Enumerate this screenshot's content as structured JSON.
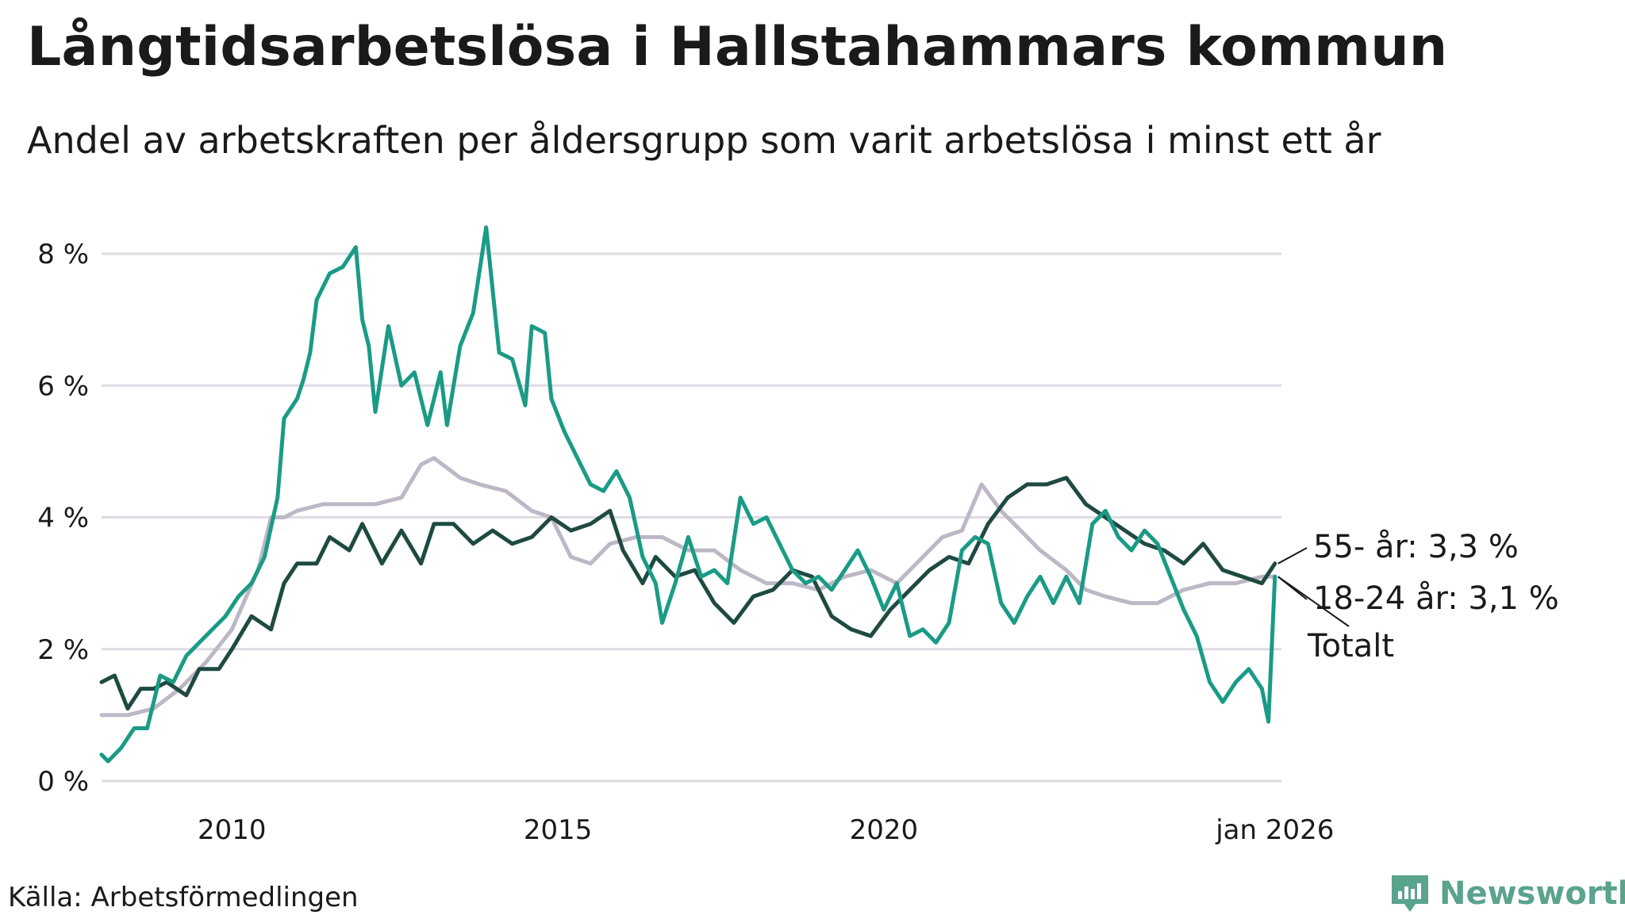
{
  "title": "Långtidsarbetslösa i Hallstahammars kommun",
  "subtitle": "Andel av arbetskraften per åldersgrupp som varit arbetslösa i minst ett år",
  "source": "Källa: Arbetsförmedlingen",
  "brand": {
    "name": "Newsworthy",
    "color": "#5aa38d"
  },
  "chart_data": {
    "type": "line",
    "xlim": [
      2008.0,
      2026.1
    ],
    "ylim": [
      0,
      8.4
    ],
    "yticks": [
      {
        "value": 0,
        "label": "0 %"
      },
      {
        "value": 2,
        "label": "2 %"
      },
      {
        "value": 4,
        "label": "4 %"
      },
      {
        "value": 6,
        "label": "6 %"
      },
      {
        "value": 8,
        "label": "8 %"
      }
    ],
    "xticks": [
      {
        "value": 2010,
        "label": "2010"
      },
      {
        "value": 2015,
        "label": "2015"
      },
      {
        "value": 2020,
        "label": "2020"
      },
      {
        "value": 2026,
        "label": "jan 2026"
      }
    ],
    "grid": true,
    "series": [
      {
        "name": "Totalt",
        "label": "Totalt",
        "color": "#bdb7c6",
        "points": [
          [
            2008.0,
            1.0
          ],
          [
            2008.4,
            1.0
          ],
          [
            2008.8,
            1.1
          ],
          [
            2009.2,
            1.4
          ],
          [
            2009.6,
            1.8
          ],
          [
            2010.0,
            2.3
          ],
          [
            2010.4,
            3.2
          ],
          [
            2010.6,
            4.0
          ],
          [
            2010.8,
            4.0
          ],
          [
            2011.0,
            4.1
          ],
          [
            2011.4,
            4.2
          ],
          [
            2011.8,
            4.2
          ],
          [
            2012.2,
            4.2
          ],
          [
            2012.6,
            4.3
          ],
          [
            2012.9,
            4.8
          ],
          [
            2013.1,
            4.9
          ],
          [
            2013.5,
            4.6
          ],
          [
            2013.8,
            4.5
          ],
          [
            2014.2,
            4.4
          ],
          [
            2014.6,
            4.1
          ],
          [
            2014.9,
            4.0
          ],
          [
            2015.2,
            3.4
          ],
          [
            2015.5,
            3.3
          ],
          [
            2015.8,
            3.6
          ],
          [
            2016.2,
            3.7
          ],
          [
            2016.6,
            3.7
          ],
          [
            2017.0,
            3.5
          ],
          [
            2017.4,
            3.5
          ],
          [
            2017.8,
            3.2
          ],
          [
            2018.2,
            3.0
          ],
          [
            2018.6,
            3.0
          ],
          [
            2019.0,
            2.9
          ],
          [
            2019.4,
            3.1
          ],
          [
            2019.8,
            3.2
          ],
          [
            2020.2,
            3.0
          ],
          [
            2020.6,
            3.4
          ],
          [
            2020.9,
            3.7
          ],
          [
            2021.2,
            3.8
          ],
          [
            2021.5,
            4.5
          ],
          [
            2021.8,
            4.1
          ],
          [
            2022.1,
            3.8
          ],
          [
            2022.4,
            3.5
          ],
          [
            2022.8,
            3.2
          ],
          [
            2023.1,
            2.9
          ],
          [
            2023.4,
            2.8
          ],
          [
            2023.8,
            2.7
          ],
          [
            2024.2,
            2.7
          ],
          [
            2024.6,
            2.9
          ],
          [
            2025.0,
            3.0
          ],
          [
            2025.4,
            3.0
          ],
          [
            2025.8,
            3.1
          ],
          [
            2026.0,
            3.1
          ]
        ]
      },
      {
        "name": "55- år",
        "label": "55- år: 3,3 %",
        "color": "#1f4a42",
        "points": [
          [
            2008.0,
            1.5
          ],
          [
            2008.2,
            1.6
          ],
          [
            2008.4,
            1.1
          ],
          [
            2008.6,
            1.4
          ],
          [
            2008.8,
            1.4
          ],
          [
            2009.0,
            1.5
          ],
          [
            2009.3,
            1.3
          ],
          [
            2009.5,
            1.7
          ],
          [
            2009.8,
            1.7
          ],
          [
            2010.0,
            2.0
          ],
          [
            2010.3,
            2.5
          ],
          [
            2010.6,
            2.3
          ],
          [
            2010.8,
            3.0
          ],
          [
            2011.0,
            3.3
          ],
          [
            2011.3,
            3.3
          ],
          [
            2011.5,
            3.7
          ],
          [
            2011.8,
            3.5
          ],
          [
            2012.0,
            3.9
          ],
          [
            2012.3,
            3.3
          ],
          [
            2012.6,
            3.8
          ],
          [
            2012.9,
            3.3
          ],
          [
            2013.1,
            3.9
          ],
          [
            2013.4,
            3.9
          ],
          [
            2013.7,
            3.6
          ],
          [
            2014.0,
            3.8
          ],
          [
            2014.3,
            3.6
          ],
          [
            2014.6,
            3.7
          ],
          [
            2014.9,
            4.0
          ],
          [
            2015.2,
            3.8
          ],
          [
            2015.5,
            3.9
          ],
          [
            2015.8,
            4.1
          ],
          [
            2016.0,
            3.5
          ],
          [
            2016.3,
            3.0
          ],
          [
            2016.5,
            3.4
          ],
          [
            2016.8,
            3.1
          ],
          [
            2017.1,
            3.2
          ],
          [
            2017.4,
            2.7
          ],
          [
            2017.7,
            2.4
          ],
          [
            2018.0,
            2.8
          ],
          [
            2018.3,
            2.9
          ],
          [
            2018.6,
            3.2
          ],
          [
            2018.9,
            3.1
          ],
          [
            2019.2,
            2.5
          ],
          [
            2019.5,
            2.3
          ],
          [
            2019.8,
            2.2
          ],
          [
            2020.1,
            2.6
          ],
          [
            2020.4,
            2.9
          ],
          [
            2020.7,
            3.2
          ],
          [
            2021.0,
            3.4
          ],
          [
            2021.3,
            3.3
          ],
          [
            2021.6,
            3.9
          ],
          [
            2021.9,
            4.3
          ],
          [
            2022.2,
            4.5
          ],
          [
            2022.5,
            4.5
          ],
          [
            2022.8,
            4.6
          ],
          [
            2023.1,
            4.2
          ],
          [
            2023.4,
            4.0
          ],
          [
            2023.7,
            3.8
          ],
          [
            2024.0,
            3.6
          ],
          [
            2024.3,
            3.5
          ],
          [
            2024.6,
            3.3
          ],
          [
            2024.9,
            3.6
          ],
          [
            2025.2,
            3.2
          ],
          [
            2025.5,
            3.1
          ],
          [
            2025.8,
            3.0
          ],
          [
            2026.0,
            3.3
          ]
        ]
      },
      {
        "name": "18-24 år",
        "label": "18-24 år: 3,1 %",
        "color": "#1a9b86",
        "points": [
          [
            2008.0,
            0.4
          ],
          [
            2008.1,
            0.3
          ],
          [
            2008.3,
            0.5
          ],
          [
            2008.5,
            0.8
          ],
          [
            2008.7,
            0.8
          ],
          [
            2008.9,
            1.6
          ],
          [
            2009.1,
            1.5
          ],
          [
            2009.3,
            1.9
          ],
          [
            2009.5,
            2.1
          ],
          [
            2009.7,
            2.3
          ],
          [
            2009.9,
            2.5
          ],
          [
            2010.1,
            2.8
          ],
          [
            2010.3,
            3.0
          ],
          [
            2010.5,
            3.4
          ],
          [
            2010.7,
            4.3
          ],
          [
            2010.8,
            5.5
          ],
          [
            2011.0,
            5.8
          ],
          [
            2011.1,
            6.1
          ],
          [
            2011.2,
            6.5
          ],
          [
            2011.3,
            7.3
          ],
          [
            2011.5,
            7.7
          ],
          [
            2011.7,
            7.8
          ],
          [
            2011.9,
            8.1
          ],
          [
            2012.0,
            7.0
          ],
          [
            2012.1,
            6.6
          ],
          [
            2012.2,
            5.6
          ],
          [
            2012.4,
            6.9
          ],
          [
            2012.6,
            6.0
          ],
          [
            2012.8,
            6.2
          ],
          [
            2013.0,
            5.4
          ],
          [
            2013.2,
            6.2
          ],
          [
            2013.3,
            5.4
          ],
          [
            2013.5,
            6.6
          ],
          [
            2013.7,
            7.1
          ],
          [
            2013.9,
            8.4
          ],
          [
            2014.1,
            6.5
          ],
          [
            2014.3,
            6.4
          ],
          [
            2014.5,
            5.7
          ],
          [
            2014.6,
            6.9
          ],
          [
            2014.8,
            6.8
          ],
          [
            2014.9,
            5.8
          ],
          [
            2015.1,
            5.3
          ],
          [
            2015.3,
            4.9
          ],
          [
            2015.5,
            4.5
          ],
          [
            2015.7,
            4.4
          ],
          [
            2015.9,
            4.7
          ],
          [
            2016.1,
            4.3
          ],
          [
            2016.3,
            3.4
          ],
          [
            2016.5,
            3.0
          ],
          [
            2016.6,
            2.4
          ],
          [
            2016.8,
            3.0
          ],
          [
            2017.0,
            3.7
          ],
          [
            2017.2,
            3.1
          ],
          [
            2017.4,
            3.2
          ],
          [
            2017.6,
            3.0
          ],
          [
            2017.8,
            4.3
          ],
          [
            2018.0,
            3.9
          ],
          [
            2018.2,
            4.0
          ],
          [
            2018.4,
            3.6
          ],
          [
            2018.6,
            3.2
          ],
          [
            2018.8,
            3.0
          ],
          [
            2019.0,
            3.1
          ],
          [
            2019.2,
            2.9
          ],
          [
            2019.4,
            3.2
          ],
          [
            2019.6,
            3.5
          ],
          [
            2019.8,
            3.1
          ],
          [
            2020.0,
            2.6
          ],
          [
            2020.2,
            3.0
          ],
          [
            2020.4,
            2.2
          ],
          [
            2020.6,
            2.3
          ],
          [
            2020.8,
            2.1
          ],
          [
            2021.0,
            2.4
          ],
          [
            2021.2,
            3.5
          ],
          [
            2021.4,
            3.7
          ],
          [
            2021.6,
            3.6
          ],
          [
            2021.8,
            2.7
          ],
          [
            2022.0,
            2.4
          ],
          [
            2022.2,
            2.8
          ],
          [
            2022.4,
            3.1
          ],
          [
            2022.6,
            2.7
          ],
          [
            2022.8,
            3.1
          ],
          [
            2023.0,
            2.7
          ],
          [
            2023.2,
            3.9
          ],
          [
            2023.4,
            4.1
          ],
          [
            2023.6,
            3.7
          ],
          [
            2023.8,
            3.5
          ],
          [
            2024.0,
            3.8
          ],
          [
            2024.2,
            3.6
          ],
          [
            2024.4,
            3.1
          ],
          [
            2024.6,
            2.6
          ],
          [
            2024.8,
            2.2
          ],
          [
            2025.0,
            1.5
          ],
          [
            2025.2,
            1.2
          ],
          [
            2025.4,
            1.5
          ],
          [
            2025.6,
            1.7
          ],
          [
            2025.8,
            1.4
          ],
          [
            2025.9,
            0.9
          ],
          [
            2026.0,
            3.1
          ]
        ]
      }
    ]
  }
}
